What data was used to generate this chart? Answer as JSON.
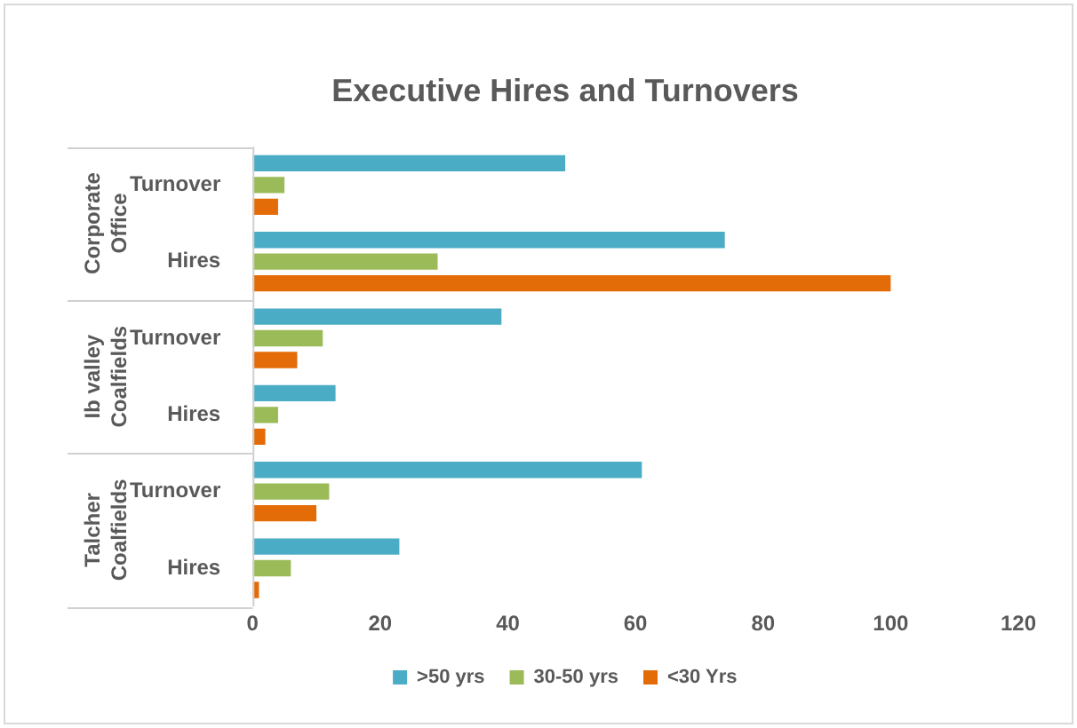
{
  "chart_data": {
    "type": "bar",
    "orientation": "horizontal",
    "title": "Executive Hires and Turnovers",
    "categories": [
      "Turnover",
      "Hires",
      "Turnover",
      "Hires",
      "Turnover",
      "Hires"
    ],
    "series": [
      {
        "name": ">50 yrs",
        "color": "#4bacc6",
        "values": [
          49,
          74,
          39,
          13,
          61,
          23
        ]
      },
      {
        "name": "30-50 yrs",
        "color": "#9bbb59",
        "values": [
          5,
          29,
          11,
          4,
          12,
          6
        ]
      },
      {
        "name": "<30 Yrs",
        "color": "#e36c09",
        "values": [
          4,
          100,
          7,
          2,
          10,
          1
        ]
      }
    ],
    "annotations": [
      "Corporate Office",
      "Ib valley Coalfields",
      "Talcher Coalfields"
    ],
    "xlim": [
      0,
      120
    ],
    "xticks": [
      0,
      20,
      40,
      60,
      80,
      100,
      120
    ],
    "grid": false,
    "legend": "bottom"
  }
}
